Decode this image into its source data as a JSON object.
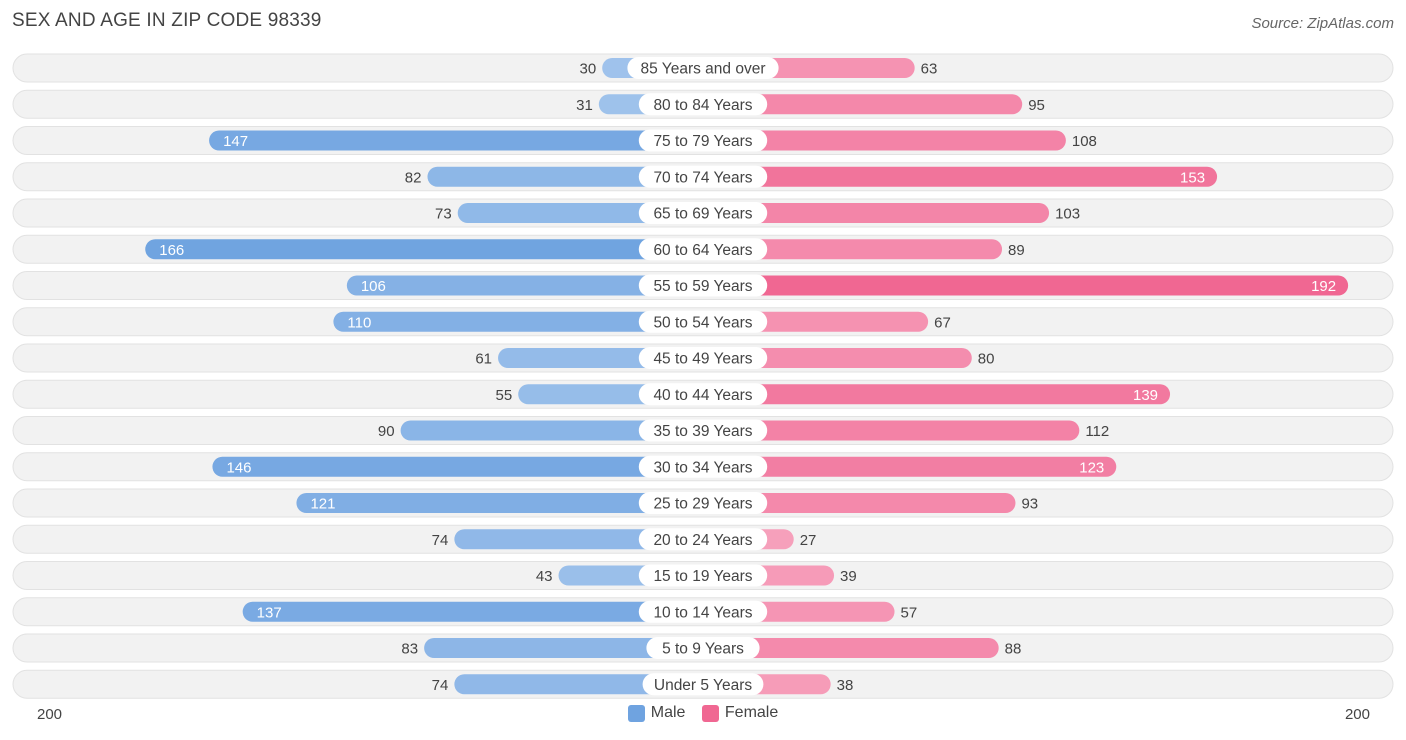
{
  "title": "SEX AND AGE IN ZIP CODE 98339",
  "source": "Source: ZipAtlas.com",
  "colors": {
    "male": "#6fa3e0",
    "male_light": "#a9c9ee",
    "female": "#f06792",
    "female_light": "#f7a9c2",
    "row_bg": "#f0f0f0"
  },
  "chart_data": {
    "type": "bar",
    "orientation": "horizontal-butterfly",
    "xlim": [
      0,
      200
    ],
    "axis_left_label": "200",
    "axis_right_label": "200",
    "legend": [
      {
        "name": "Male",
        "color": "#6fa3e0"
      },
      {
        "name": "Female",
        "color": "#f06792"
      }
    ],
    "categories": [
      "85 Years and over",
      "80 to 84 Years",
      "75 to 79 Years",
      "70 to 74 Years",
      "65 to 69 Years",
      "60 to 64 Years",
      "55 to 59 Years",
      "50 to 54 Years",
      "45 to 49 Years",
      "40 to 44 Years",
      "35 to 39 Years",
      "30 to 34 Years",
      "25 to 29 Years",
      "20 to 24 Years",
      "15 to 19 Years",
      "10 to 14 Years",
      "5 to 9 Years",
      "Under 5 Years"
    ],
    "series": [
      {
        "name": "Male",
        "values": [
          30,
          31,
          147,
          82,
          73,
          166,
          106,
          110,
          61,
          55,
          90,
          146,
          121,
          74,
          43,
          137,
          83,
          74
        ]
      },
      {
        "name": "Female",
        "values": [
          63,
          95,
          108,
          153,
          103,
          89,
          192,
          67,
          80,
          139,
          112,
          123,
          93,
          27,
          39,
          57,
          88,
          38
        ]
      }
    ]
  }
}
